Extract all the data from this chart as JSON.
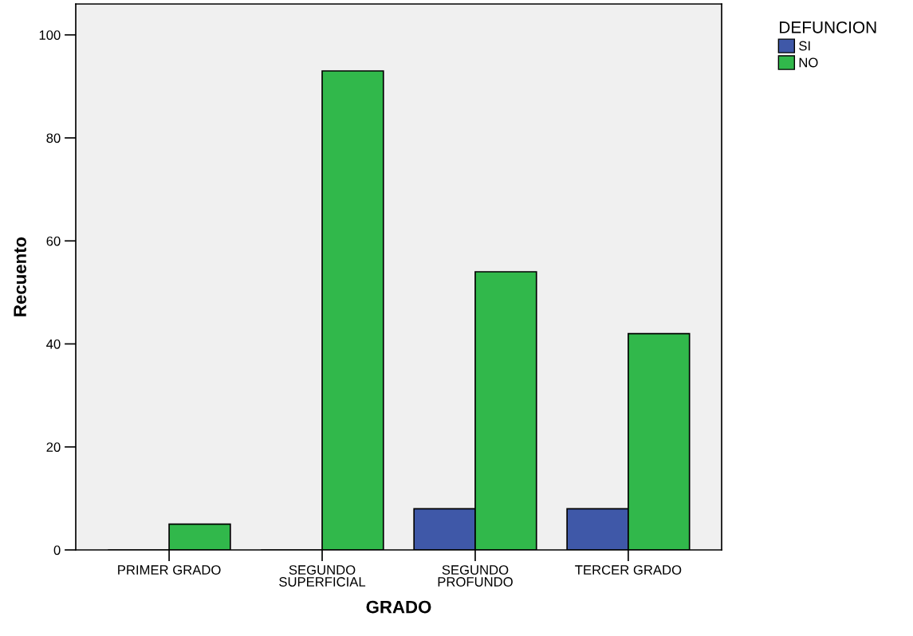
{
  "chart_data": {
    "type": "bar",
    "xlabel": "GRADO",
    "ylabel": "Recuento",
    "legend_title": "DEFUNCION",
    "categories": [
      "PRIMER GRADO",
      "SEGUNDO\nSUPERFICIAL",
      "SEGUNDO\nPROFUNDO",
      "TERCER GRADO"
    ],
    "series": [
      {
        "name": "SI",
        "color": "#3f58a8",
        "values": [
          0,
          0,
          8,
          8
        ]
      },
      {
        "name": "NO",
        "color": "#31b84b",
        "values": [
          5,
          93,
          54,
          42
        ]
      }
    ],
    "ylim": [
      0,
      106
    ],
    "yticks": [
      0,
      20,
      40,
      60,
      80,
      100
    ],
    "grid": false,
    "legend": "top right"
  }
}
